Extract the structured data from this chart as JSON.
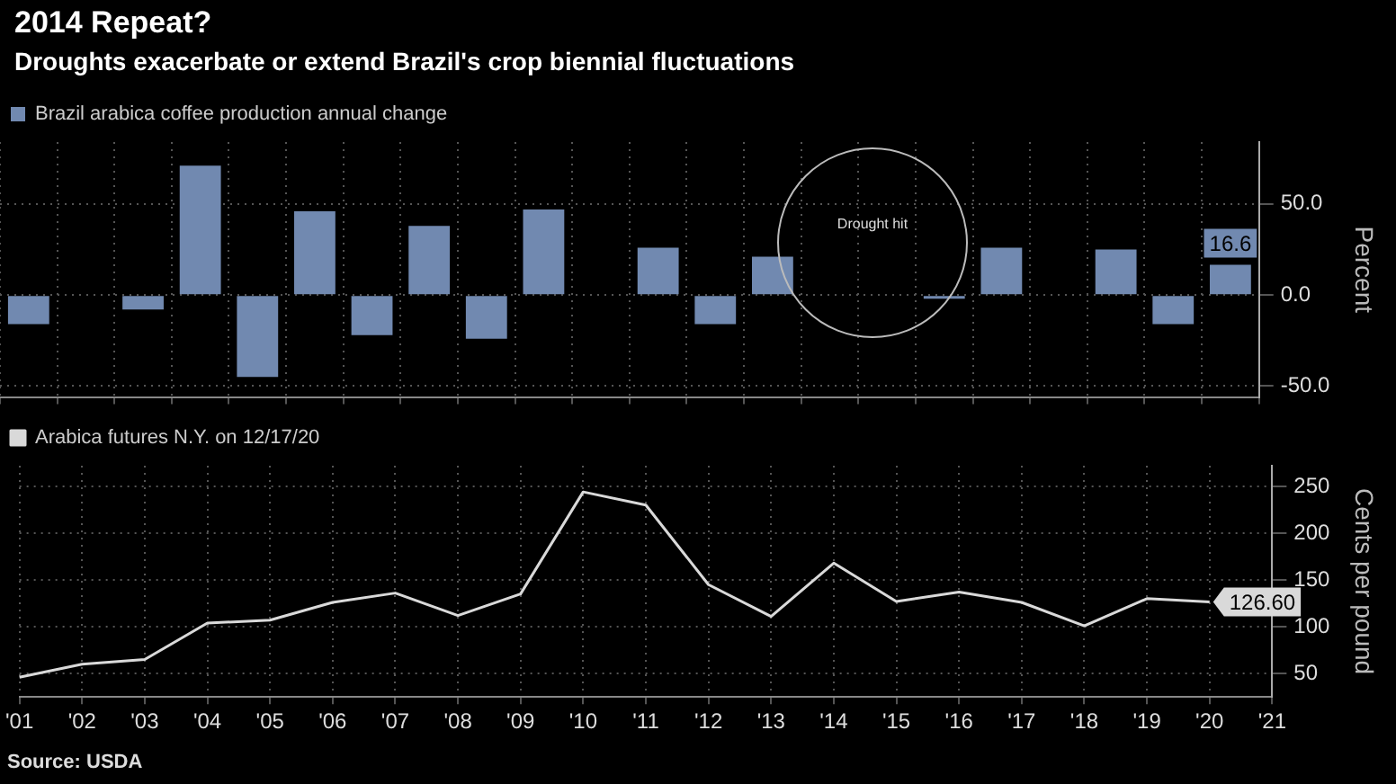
{
  "chart_data": [
    {
      "type": "bar",
      "title": "2014 Repeat?",
      "subtitle": "Droughts exacerbate or extend Brazil's crop biennial fluctuations",
      "ylabel": "Percent",
      "categories": [
        null,
        null,
        null,
        null,
        null,
        null,
        null,
        null,
        null,
        null,
        null,
        null,
        null,
        null,
        null,
        null,
        null,
        null,
        null,
        null,
        null,
        null
      ],
      "series": [
        {
          "name": "Brazil arabica coffee production annual change",
          "color": "#7189b0",
          "values": [
            -16,
            null,
            -8,
            71,
            -45,
            46,
            -22,
            38,
            -24,
            47,
            null,
            26,
            -16,
            21,
            null,
            null,
            -2,
            26,
            null,
            25,
            -16,
            16.6
          ],
          "value_labels": [
            null,
            null,
            null,
            null,
            null,
            null,
            null,
            null,
            null,
            null,
            null,
            null,
            null,
            null,
            null,
            null,
            null,
            null,
            null,
            null,
            null,
            "16.6"
          ]
        }
      ],
      "annotations": [
        "Drought hit"
      ],
      "ylim": [
        -56,
        84
      ],
      "yticks": [
        {
          "value": -50,
          "label": "-50.0"
        },
        {
          "value": 0,
          "label": "0.0"
        },
        {
          "value": 50,
          "label": "50.0"
        }
      ],
      "grid": true,
      "legend": "top left",
      "tick_labels": "y"
    },
    {
      "type": "line",
      "ylabel": "Cents per pound",
      "categories": [
        "'01",
        "'02",
        "'03",
        "'04",
        "'05",
        "'06",
        "'07",
        "'08",
        "'09",
        "'10",
        "'11",
        "'12",
        "'13",
        "'14",
        "'15",
        "'16",
        "'17",
        "'18",
        "'19",
        "'20",
        "'21"
      ],
      "series": [
        {
          "name": "Arabica futures N.Y. on 12/17/20",
          "color": "#d9d9d9",
          "values": [
            46,
            60,
            65,
            104,
            107,
            126,
            136,
            112,
            135,
            244,
            230,
            145,
            111,
            168,
            127,
            137,
            126,
            101,
            130,
            126.6,
            null
          ],
          "value_labels": [
            null,
            null,
            null,
            null,
            null,
            null,
            null,
            null,
            null,
            null,
            null,
            null,
            null,
            null,
            null,
            null,
            null,
            null,
            null,
            "126.60",
            null
          ]
        }
      ],
      "annotations": [
        "Source: USDA"
      ],
      "ylim": [
        25,
        272
      ],
      "yticks": [
        50,
        100,
        150,
        200,
        250
      ],
      "grid": true,
      "legend": "top left",
      "marker": "none",
      "line_style": "solid"
    }
  ]
}
